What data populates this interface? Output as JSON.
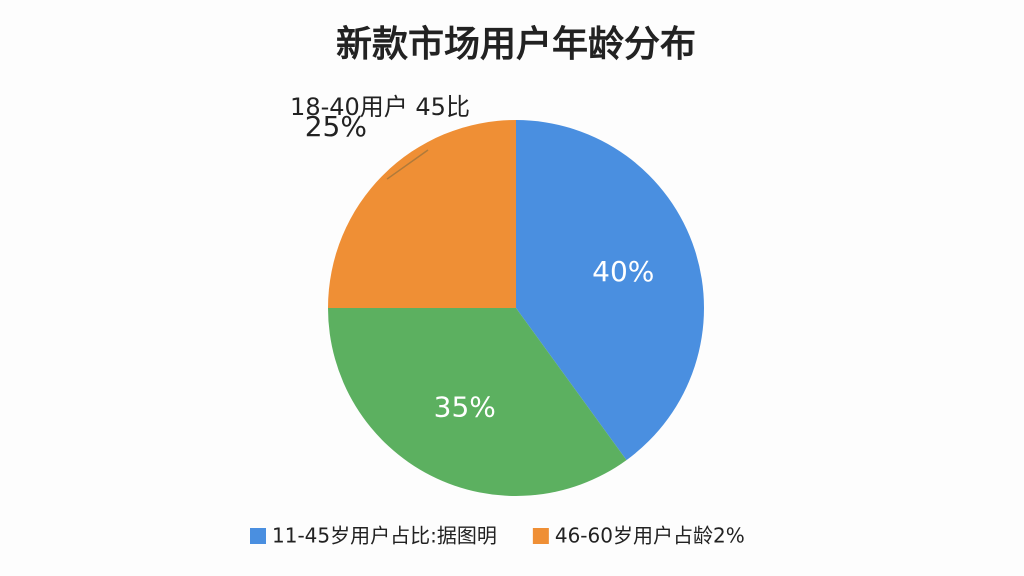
{
  "chart_data": {
    "type": "pie",
    "title": "新款市场用户年龄分布",
    "categories": [
      "11-45岁用户占比:据图明",
      null,
      "46-60岁用户占龄2%"
    ],
    "values": [
      40,
      35,
      25
    ],
    "value_labels": [
      "40%",
      "35%",
      "25%"
    ],
    "colors": [
      "#4a8fe0",
      "#5cb060",
      "#ef8f35"
    ],
    "annotation": "18-40用户 45比",
    "legend": "bottom"
  }
}
